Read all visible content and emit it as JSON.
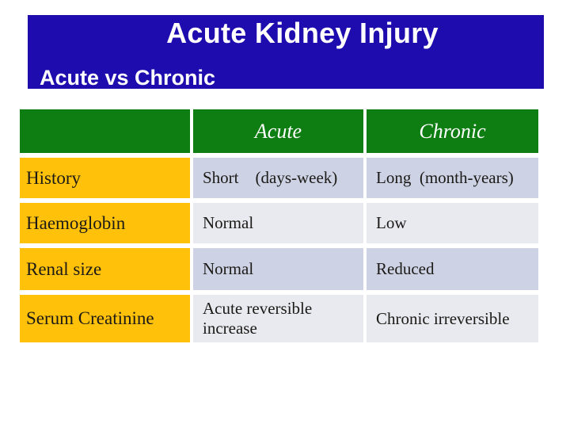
{
  "slide": {
    "title": "Acute Kidney Injury",
    "subtitle": "Acute vs Chronic"
  },
  "table": {
    "columns": [
      "",
      "Acute",
      "Chronic"
    ],
    "rows": [
      {
        "label": "History",
        "acute": "Short    (days-week)",
        "chronic": "Long  (month-years)"
      },
      {
        "label": "Haemoglobin",
        "acute": "Normal",
        "chronic": "Low"
      },
      {
        "label": "Renal size",
        "acute": "Normal",
        "chronic": "Reduced"
      },
      {
        "label": "Serum Creatinine",
        "acute": "Acute reversible increase",
        "chronic": "Chronic irreversible"
      }
    ]
  },
  "colors": {
    "banner_blue": "#1e0cae",
    "header_green": "#0f7e12",
    "label_gold": "#ffc10a",
    "band_dark": "#cdd3e5",
    "band_light": "#e8eaf0",
    "heading_text": "#ffffff",
    "body_text": "#1c1a17",
    "page_bg": "#ffffff"
  }
}
